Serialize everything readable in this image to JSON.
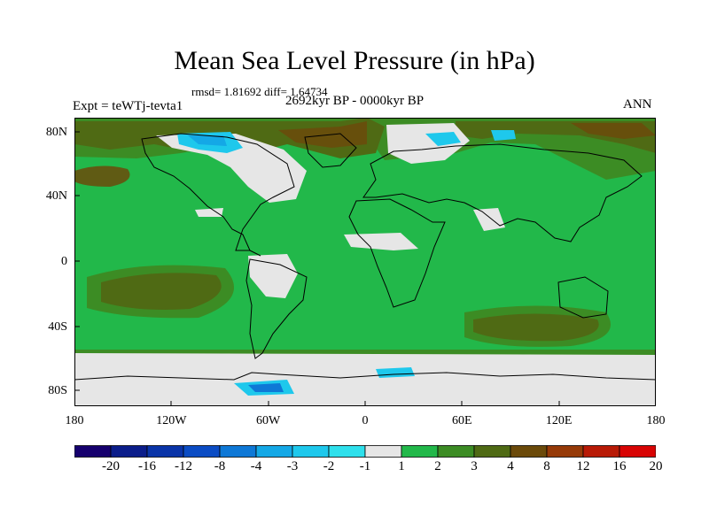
{
  "title": "Mean Sea Level Pressure (in hPa)",
  "stats": "rmsd= 1.81692  diff= 1.64734",
  "experiment": "Expt = teWTj-tevta1",
  "period": "2692kyr BP - 0000kyr BP",
  "season": "ANN",
  "lat_ticks": [
    "80N",
    "40N",
    "0",
    "40S",
    "80S"
  ],
  "lon_ticks": [
    "180",
    "120W",
    "60W",
    "0",
    "60E",
    "120E",
    "180"
  ],
  "legend": {
    "labels": [
      "-20",
      "-16",
      "-12",
      "-8",
      "-4",
      "-3",
      "-2",
      "-1",
      "1",
      "2",
      "3",
      "4",
      "8",
      "12",
      "16",
      "20"
    ],
    "colors": [
      "#16006e",
      "#0b1d8a",
      "#0a34a8",
      "#0b4cc4",
      "#0e78d6",
      "#14a8e6",
      "#1ec8ec",
      "#2ee0ec",
      "#e6e6e6",
      "#22b84a",
      "#3c8c24",
      "#4f6a14",
      "#6b4a0a",
      "#963a08",
      "#b81a06",
      "#d80404"
    ]
  },
  "map_colors": {
    "ocean_base": "#22b84a",
    "positive_mid": "#3c8c24",
    "positive_high": "#4f6a14",
    "positive_higher": "#6b4a0a",
    "neutral": "#e6e6e6",
    "negative_low": "#1ec8ec",
    "negative_mid": "#14a8e6",
    "negative_high": "#0e78d6"
  }
}
